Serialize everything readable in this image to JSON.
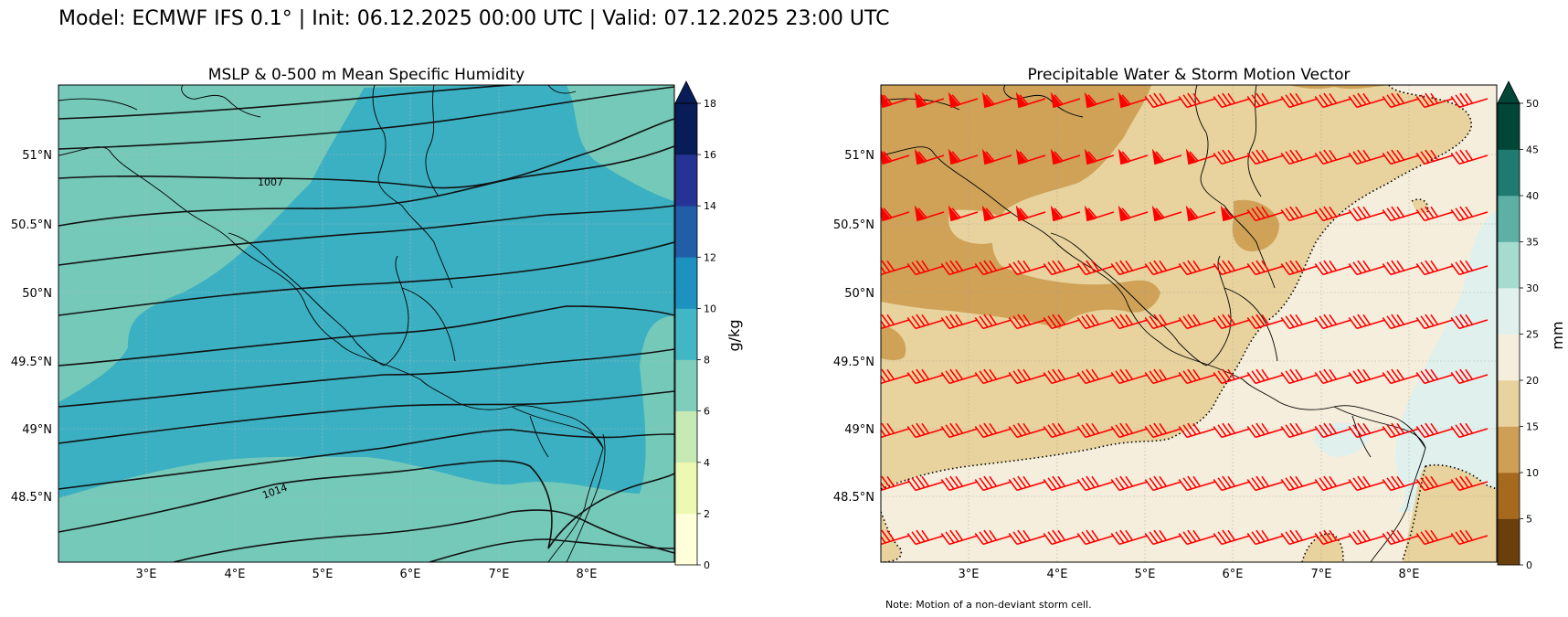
{
  "header": {
    "title": "Model: ECMWF IFS 0.1° | Init: 06.12.2025 00:00 UTC | Valid: 07.12.2025 23:00 UTC"
  },
  "left_panel": {
    "title": "MSLP & 0-500 m Mean Specific Humidity",
    "isobar_labels": [
      "1007",
      "1014"
    ],
    "colorbar": {
      "label": "g/kg",
      "ticks": [
        "0",
        "2",
        "4",
        "6",
        "8",
        "10",
        "12",
        "14",
        "16",
        "18"
      ],
      "colors": [
        "#ffffd9",
        "#edf8b1",
        "#c7e9b4",
        "#7fcdbb",
        "#41b6c4",
        "#1d91c0",
        "#225ea8",
        "#253494",
        "#081d58"
      ]
    },
    "fill_colors": {
      "low": "#75c9b9",
      "high": "#3bb0c2"
    }
  },
  "right_panel": {
    "title": "Precipitable Water & Storm Motion Vector",
    "note": "Note: Motion of a non-deviant storm cell.",
    "colorbar": {
      "label": "mm",
      "ticks": [
        "0",
        "5",
        "10",
        "15",
        "20",
        "25",
        "30",
        "35",
        "40",
        "45",
        "50"
      ],
      "colors": [
        "#6b3f0c",
        "#a66a1f",
        "#cf9f55",
        "#e8d29e",
        "#f5eedc",
        "#dff0ed",
        "#a6dbd0",
        "#5cb0a4",
        "#1f7a70",
        "#014636"
      ]
    },
    "fill_colors": {
      "dark": "#cfa258",
      "mid": "#e8d39e",
      "light": "#f5eedc",
      "cyan": "#dff0ed"
    },
    "barb_color": "#ff0000"
  },
  "axes": {
    "lon_ticks": [
      "3°E",
      "4°E",
      "5°E",
      "6°E",
      "7°E",
      "8°E"
    ],
    "lat_ticks": [
      "51°N",
      "50.5°N",
      "50°N",
      "49.5°N",
      "49°N",
      "48.5°N"
    ]
  }
}
